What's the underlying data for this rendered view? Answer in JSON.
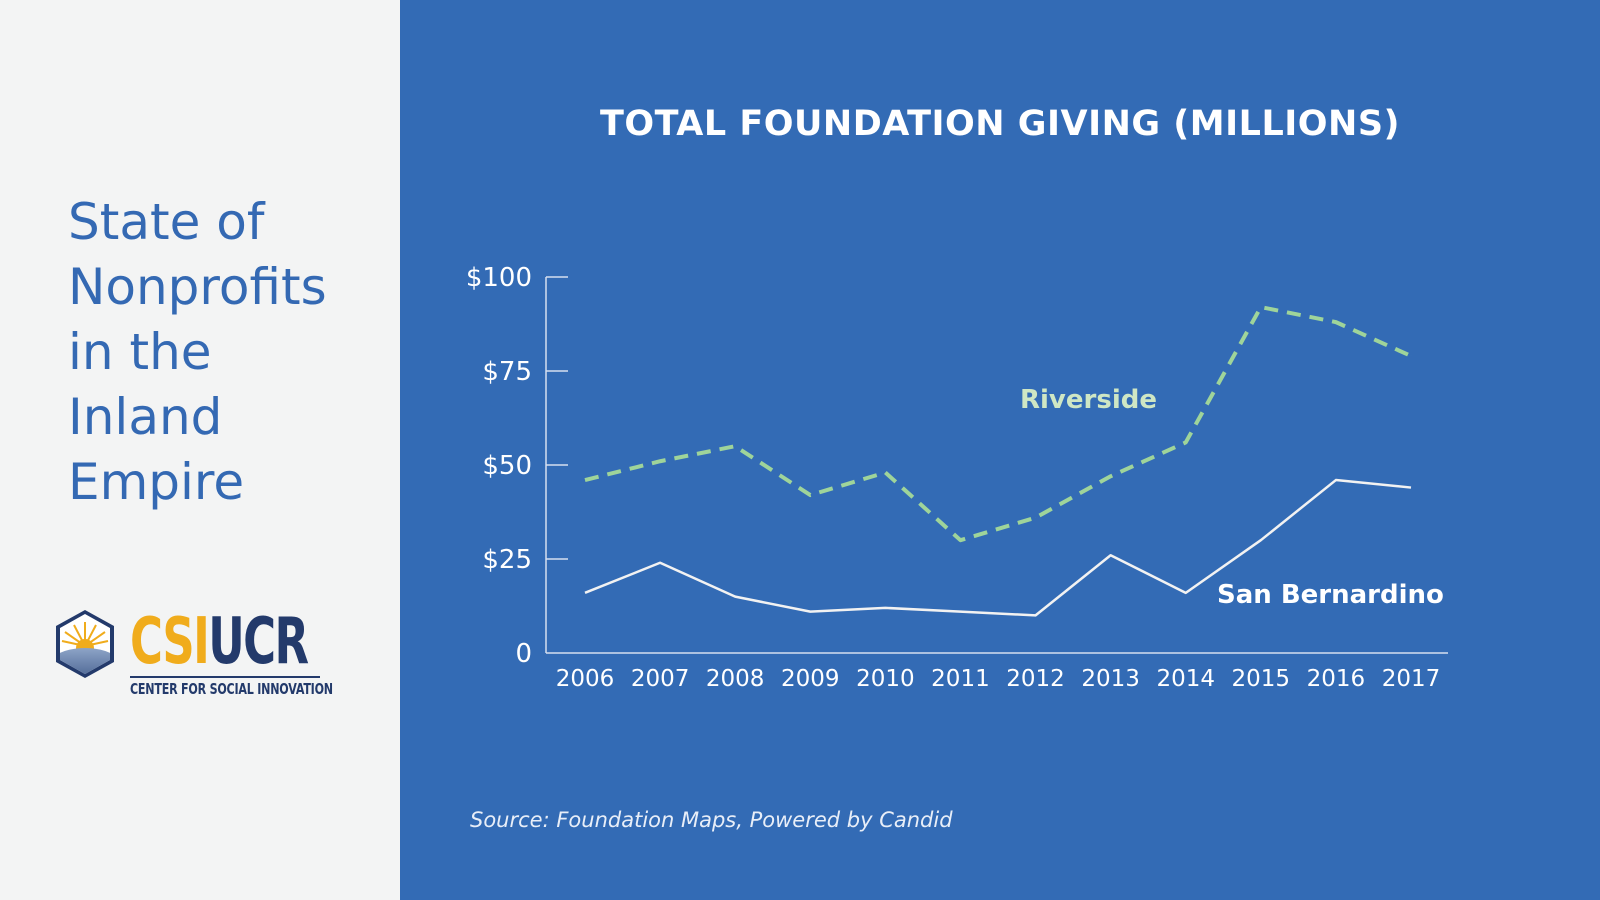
{
  "sidebar": {
    "title_lines": [
      "State of",
      "Nonprofits",
      "in the",
      "Inland",
      "Empire"
    ],
    "logo": {
      "icon": "sunrise-hexagon-icon",
      "csi": "CSI",
      "ucr": "UCR",
      "subtitle": "CENTER FOR SOCIAL INNOVATION"
    }
  },
  "colors": {
    "background_left": "#f3f4f4",
    "background_right": "#336bb5",
    "title_blue": "#3469b3",
    "logo_gold": "#f0ac1c",
    "logo_navy": "#233a6b",
    "riverside": "#9fd49a",
    "riverside_label": "#cfe7c4",
    "san_bernardino": "#f2f2f2",
    "axis": "#d6e0f0"
  },
  "source": "Source:  Foundation Maps, Powered by Candid",
  "chart_data": {
    "type": "line",
    "title": "TOTAL FOUNDATION GIVING (MILLIONS)",
    "xlabel": "",
    "ylabel": "",
    "x": [
      "2006",
      "2007",
      "2008",
      "2009",
      "2010",
      "2011",
      "2012",
      "2013",
      "2014",
      "2015",
      "2016",
      "2017"
    ],
    "ylim": [
      0,
      100
    ],
    "yticks": [
      0,
      25,
      50,
      75,
      100
    ],
    "ytick_labels": [
      "0",
      "$25",
      "$50",
      "$75",
      "$100"
    ],
    "grid": false,
    "legend": "inline labels",
    "series": [
      {
        "name": "Riverside",
        "style": "dashed",
        "values": [
          46,
          51,
          55,
          42,
          48,
          30,
          36,
          47,
          56,
          92,
          88,
          79
        ]
      },
      {
        "name": "San Bernardino",
        "style": "solid",
        "values": [
          16,
          24,
          15,
          11,
          12,
          11,
          10,
          26,
          16,
          30,
          46,
          44
        ]
      }
    ]
  }
}
